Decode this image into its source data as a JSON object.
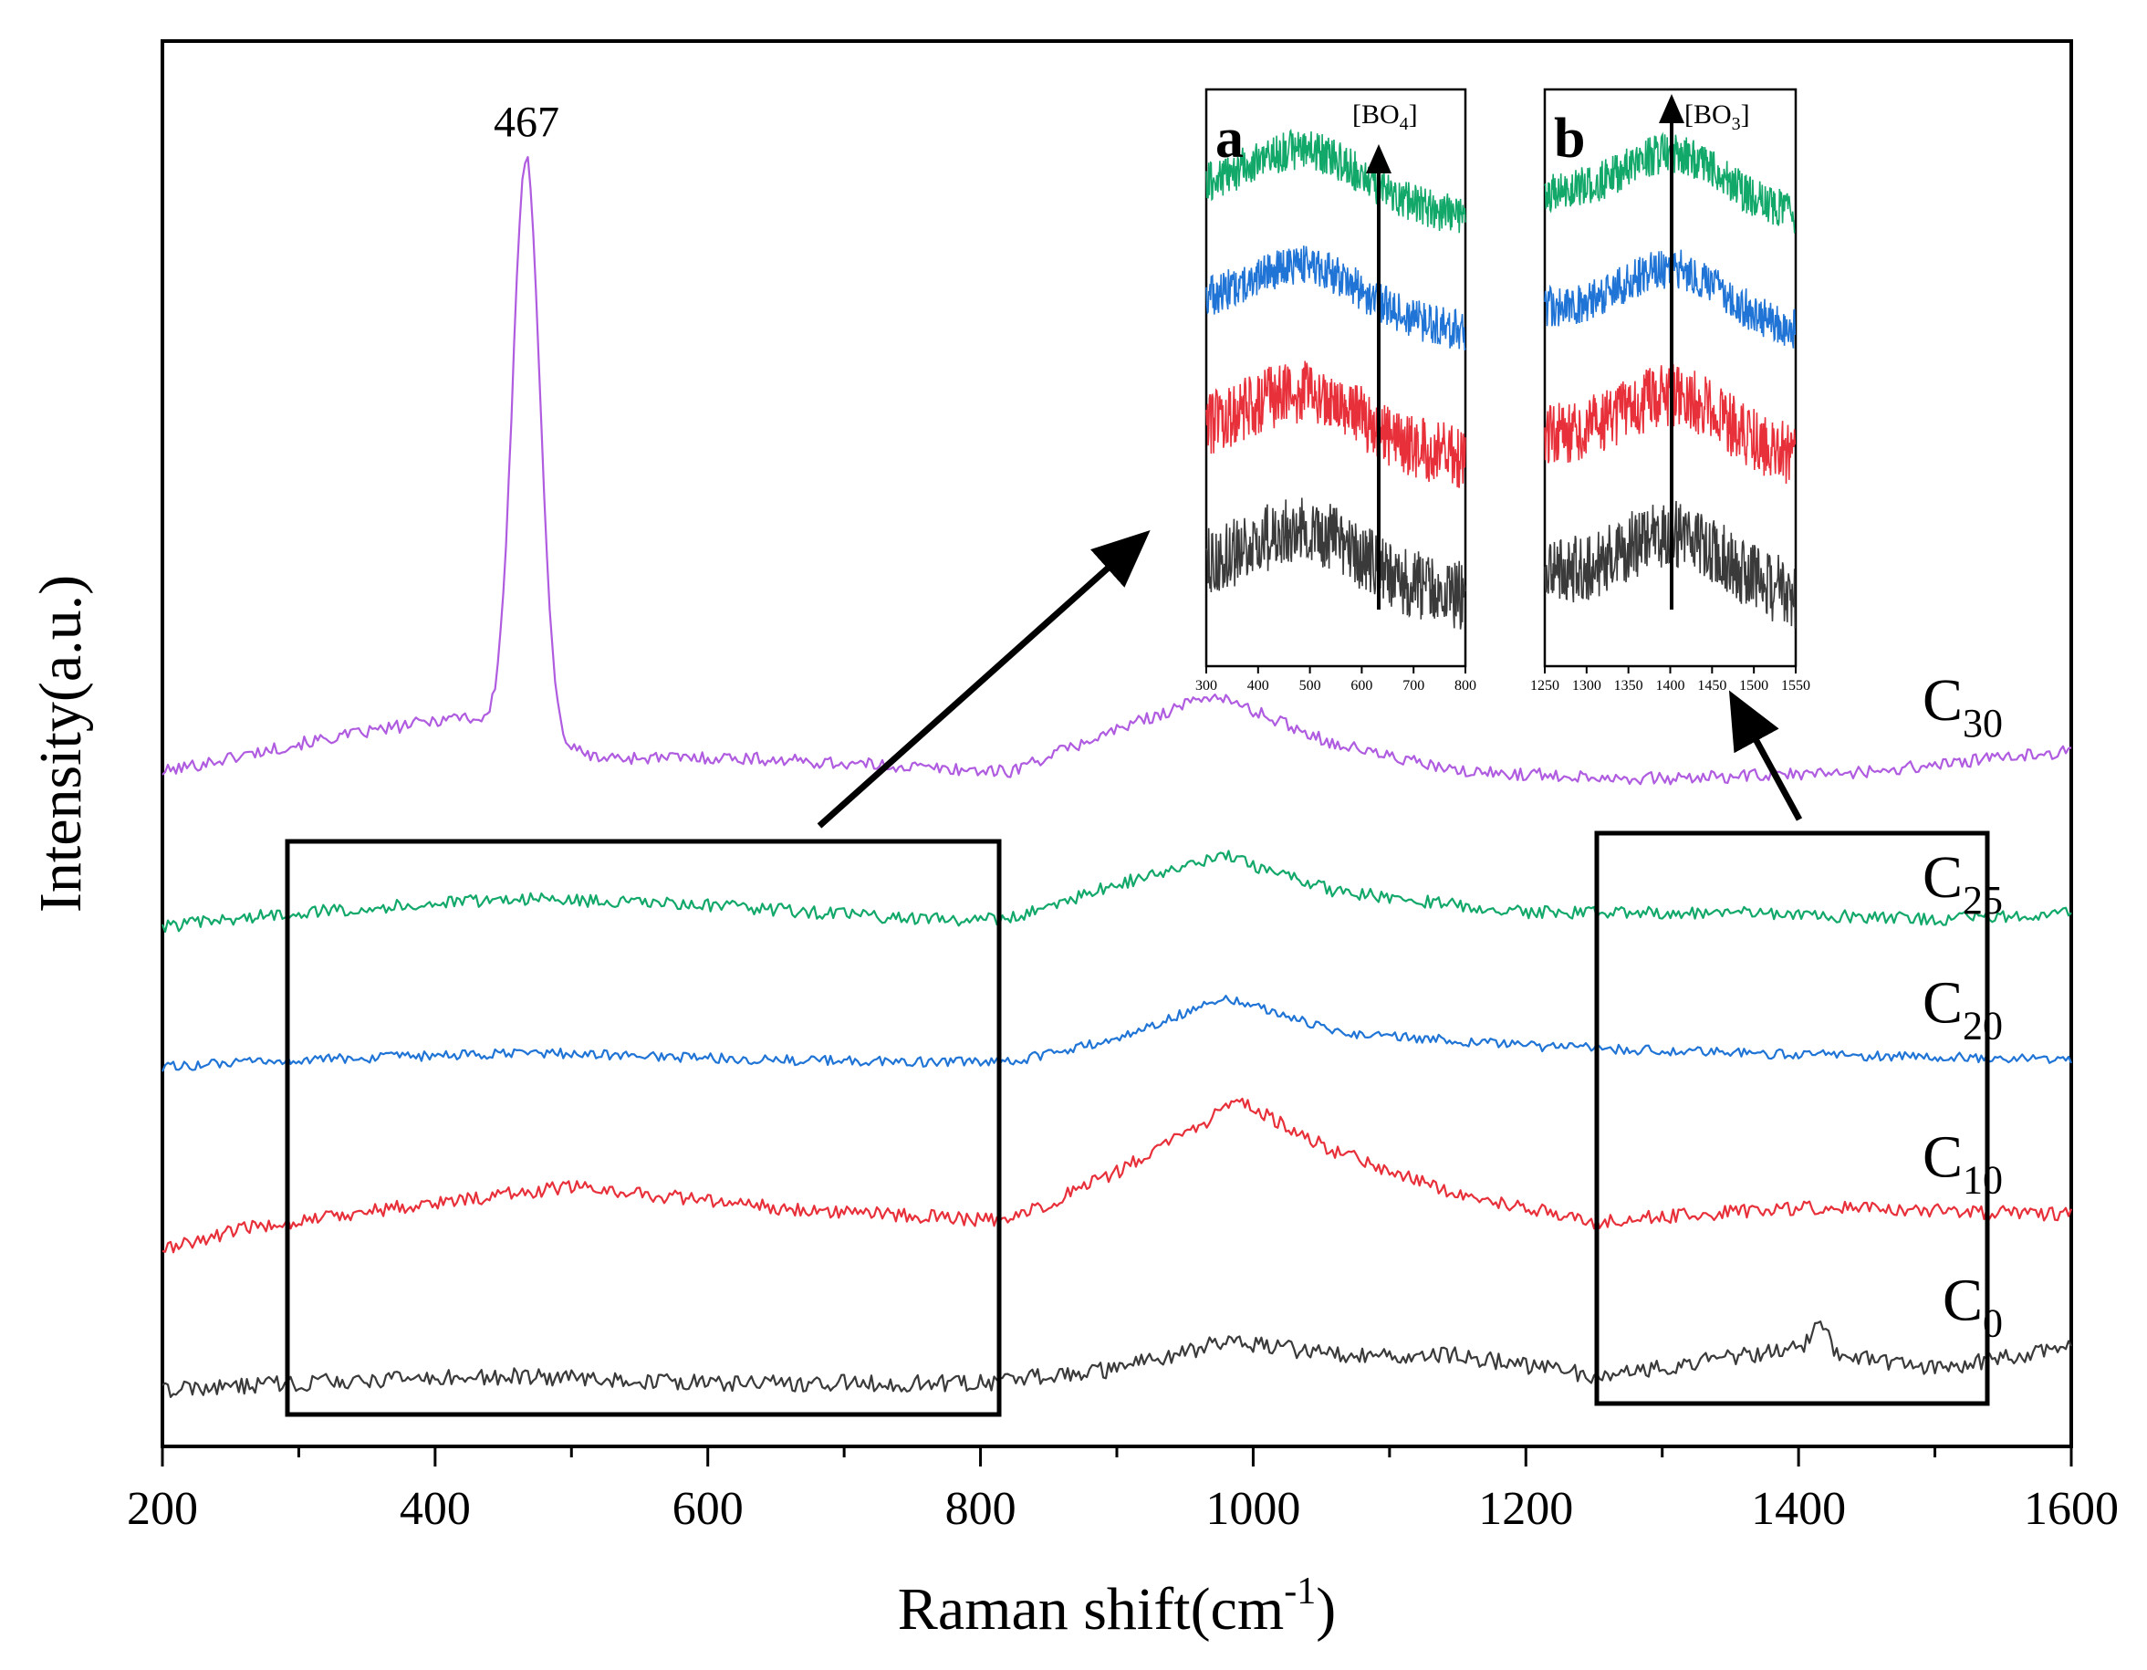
{
  "chart_data": {
    "type": "line",
    "title": "",
    "xlabel": "Raman shift(cm",
    "xlabel_sup": "-1",
    "xlabel_end": ")",
    "ylabel": "Intensity(a.u.)",
    "xlim": [
      200,
      1600
    ],
    "ylim": [
      0,
      10
    ],
    "x_ticks": [
      200,
      400,
      600,
      800,
      1000,
      1200,
      1400,
      1600
    ],
    "grid": false,
    "legend": "series labels placed at right end of each curve",
    "series": [
      {
        "name": "C30",
        "label_base": "C",
        "label_sub": "30",
        "color": "#b05ce0",
        "offset": 4.8,
        "noise": 0.045,
        "baseline_points": [
          [
            200,
            0
          ],
          [
            300,
            0.2
          ],
          [
            420,
            0.4
          ],
          [
            520,
            0.1
          ],
          [
            620,
            0.1
          ],
          [
            720,
            0.05
          ],
          [
            820,
            0.0
          ],
          [
            900,
            0.3
          ],
          [
            970,
            0.55
          ],
          [
            1060,
            0.2
          ],
          [
            1150,
            0.0
          ],
          [
            1300,
            -0.05
          ],
          [
            1450,
            0.0
          ],
          [
            1600,
            0.15
          ]
        ],
        "peaks": [
          {
            "center": 467,
            "height": 4.1,
            "width": 10
          }
        ]
      },
      {
        "name": "C25",
        "label_base": "C",
        "label_sub": "25",
        "color": "#12a86a",
        "offset": 3.7,
        "noise": 0.045,
        "baseline_points": [
          [
            200,
            0
          ],
          [
            300,
            0.1
          ],
          [
            460,
            0.2
          ],
          [
            600,
            0.15
          ],
          [
            760,
            0.05
          ],
          [
            820,
            0.05
          ],
          [
            900,
            0.3
          ],
          [
            980,
            0.5
          ],
          [
            1060,
            0.25
          ],
          [
            1200,
            0.1
          ],
          [
            1350,
            0.1
          ],
          [
            1500,
            0.05
          ],
          [
            1600,
            0.1
          ]
        ],
        "peaks": []
      },
      {
        "name": "C20",
        "label_base": "C",
        "label_sub": "20",
        "color": "#1f74d6",
        "offset": 2.7,
        "noise": 0.035,
        "baseline_points": [
          [
            200,
            0
          ],
          [
            300,
            0.05
          ],
          [
            480,
            0.1
          ],
          [
            650,
            0.05
          ],
          [
            820,
            0.03
          ],
          [
            900,
            0.2
          ],
          [
            980,
            0.5
          ],
          [
            1060,
            0.25
          ],
          [
            1200,
            0.15
          ],
          [
            1350,
            0.1
          ],
          [
            1600,
            0.05
          ]
        ],
        "peaks": []
      },
      {
        "name": "C10",
        "label_base": "C",
        "label_sub": "10",
        "color": "#e8303a",
        "offset": 1.4,
        "noise": 0.05,
        "baseline_points": [
          [
            200,
            0
          ],
          [
            260,
            0.15
          ],
          [
            330,
            0.25
          ],
          [
            500,
            0.45
          ],
          [
            650,
            0.3
          ],
          [
            820,
            0.2
          ],
          [
            900,
            0.55
          ],
          [
            990,
            1.05
          ],
          [
            1060,
            0.7
          ],
          [
            1150,
            0.4
          ],
          [
            1250,
            0.2
          ],
          [
            1400,
            0.3
          ],
          [
            1600,
            0.25
          ]
        ],
        "peaks": []
      },
      {
        "name": "C0",
        "label_base": "C",
        "label_sub": "0",
        "color": "#3a3a3a",
        "offset": 0.4,
        "noise": 0.06,
        "baseline_points": [
          [
            200,
            0
          ],
          [
            300,
            0.05
          ],
          [
            450,
            0.1
          ],
          [
            600,
            0.05
          ],
          [
            800,
            0.05
          ],
          [
            900,
            0.15
          ],
          [
            980,
            0.35
          ],
          [
            1060,
            0.25
          ],
          [
            1150,
            0.25
          ],
          [
            1250,
            0.1
          ],
          [
            1400,
            0.3
          ],
          [
            1500,
            0.15
          ],
          [
            1600,
            0.3
          ]
        ],
        "peaks": [
          {
            "center": 1415,
            "height": 0.2,
            "width": 6
          }
        ]
      }
    ],
    "annotations": [
      {
        "text": "467",
        "x": 467
      }
    ],
    "zoom_regions": [
      {
        "name": "a",
        "x_range": [
          290,
          815
        ]
      },
      {
        "name": "b",
        "x_range": [
          1255,
          1540
        ]
      }
    ],
    "insets": [
      {
        "label": "a",
        "xlim": [
          300,
          800
        ],
        "x_ticks": [
          300,
          400,
          500,
          600,
          700,
          800
        ],
        "marker_x": 630,
        "marker_label_base": "[BO",
        "marker_label_sub": "4",
        "marker_label_end": "]",
        "peak_center": 490,
        "peak_width": 110
      },
      {
        "label": "b",
        "xlim": [
          1250,
          1550
        ],
        "x_ticks": [
          1250,
          1300,
          1350,
          1400,
          1450,
          1500,
          1550
        ],
        "marker_x": 1405,
        "marker_label_base": "[BO",
        "marker_label_sub": "3",
        "marker_label_end": "]",
        "peak_center": 1405,
        "peak_width": 60
      }
    ]
  }
}
